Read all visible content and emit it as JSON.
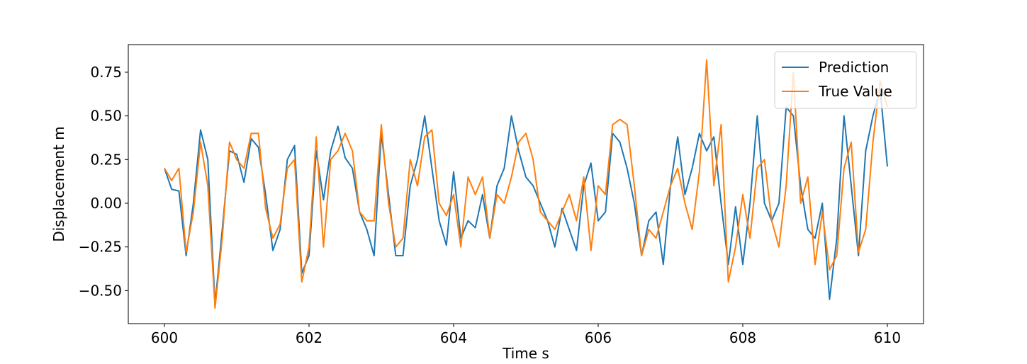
{
  "chart_data": {
    "type": "line",
    "xlabel": "Time s",
    "ylabel": "Displacement m",
    "xlim": [
      599.5,
      610.5
    ],
    "ylim": [
      -0.689,
      0.908
    ],
    "xticks": [
      600,
      602,
      604,
      606,
      608,
      610
    ],
    "yticks": [
      {
        "value": -0.5,
        "label": "−0.50"
      },
      {
        "value": -0.25,
        "label": "−0.25"
      },
      {
        "value": 0,
        "label": "0.00"
      },
      {
        "value": 0.25,
        "label": "0.25"
      },
      {
        "value": 0.5,
        "label": "0.50"
      },
      {
        "value": 0.75,
        "label": "0.75"
      }
    ],
    "grid": false,
    "legend": "upper right",
    "x": [
      600.0,
      600.1,
      600.2,
      600.3,
      600.4,
      600.5,
      600.6,
      600.7,
      600.8,
      600.9,
      601.0,
      601.1,
      601.2,
      601.3,
      601.4,
      601.5,
      601.6,
      601.7,
      601.8,
      601.9,
      602.0,
      602.1,
      602.2,
      602.3,
      602.4,
      602.5,
      602.6,
      602.7,
      602.8,
      602.9,
      603.0,
      603.1,
      603.2,
      603.3,
      603.4,
      603.5,
      603.6,
      603.7,
      603.8,
      603.9,
      604.0,
      604.1,
      604.2,
      604.3,
      604.4,
      604.5,
      604.6,
      604.7,
      604.8,
      604.9,
      605.0,
      605.1,
      605.2,
      605.3,
      605.4,
      605.5,
      605.6,
      605.7,
      605.8,
      605.9,
      606.0,
      606.1,
      606.2,
      606.3,
      606.4,
      606.5,
      606.6,
      606.7,
      606.8,
      606.9,
      607.0,
      607.1,
      607.2,
      607.3,
      607.4,
      607.5,
      607.6,
      607.7,
      607.8,
      607.9,
      608.0,
      608.1,
      608.2,
      608.3,
      608.4,
      608.5,
      608.6,
      608.7,
      608.8,
      608.9,
      609.0,
      609.1,
      609.2,
      609.3,
      609.4,
      609.5,
      609.6,
      609.7,
      609.8,
      609.9,
      610.0
    ],
    "series": [
      {
        "name": "Prediction",
        "color": "#1f77b4",
        "values": [
          0.2,
          0.08,
          0.07,
          -0.3,
          0.0,
          0.42,
          0.25,
          -0.58,
          -0.15,
          0.3,
          0.28,
          0.12,
          0.37,
          0.32,
          0.05,
          -0.27,
          -0.15,
          0.25,
          0.33,
          -0.4,
          -0.3,
          0.3,
          0.02,
          0.3,
          0.44,
          0.26,
          0.2,
          -0.05,
          -0.15,
          -0.3,
          0.4,
          0.05,
          -0.3,
          -0.3,
          0.1,
          0.25,
          0.5,
          0.2,
          -0.1,
          -0.24,
          0.18,
          -0.2,
          -0.1,
          -0.14,
          0.05,
          -0.2,
          0.1,
          0.2,
          0.5,
          0.3,
          0.15,
          0.1,
          0.0,
          -0.1,
          -0.25,
          -0.03,
          -0.15,
          -0.27,
          0.1,
          0.23,
          -0.1,
          -0.05,
          0.4,
          0.35,
          0.2,
          0.0,
          -0.3,
          -0.1,
          -0.05,
          -0.35,
          0.1,
          0.38,
          0.05,
          0.2,
          0.4,
          0.3,
          0.38,
          0.0,
          -0.35,
          -0.02,
          -0.35,
          0.0,
          0.5,
          0.0,
          -0.1,
          0.0,
          0.55,
          0.5,
          0.1,
          -0.15,
          -0.2,
          0.0,
          -0.55,
          -0.2,
          0.5,
          0.1,
          -0.3,
          0.3,
          0.5,
          0.65,
          0.21
        ]
      },
      {
        "name": "True Value",
        "color": "#ff7f0e",
        "values": [
          0.2,
          0.13,
          0.2,
          -0.28,
          -0.05,
          0.35,
          0.1,
          -0.6,
          -0.2,
          0.35,
          0.25,
          0.2,
          0.4,
          0.4,
          -0.03,
          -0.2,
          -0.12,
          0.2,
          0.25,
          -0.45,
          -0.25,
          0.38,
          -0.25,
          0.25,
          0.3,
          0.4,
          0.3,
          -0.05,
          -0.1,
          -0.1,
          0.45,
          0.0,
          -0.25,
          -0.2,
          0.25,
          0.1,
          0.38,
          0.42,
          0.0,
          -0.07,
          0.05,
          -0.25,
          0.15,
          0.05,
          0.15,
          -0.2,
          0.05,
          0.0,
          0.15,
          0.35,
          0.4,
          0.25,
          -0.05,
          -0.1,
          -0.15,
          -0.05,
          0.05,
          -0.1,
          0.15,
          -0.27,
          0.1,
          0.05,
          0.45,
          0.48,
          0.45,
          0.1,
          -0.3,
          -0.15,
          -0.2,
          -0.05,
          0.1,
          0.2,
          0.0,
          -0.15,
          0.18,
          0.82,
          0.1,
          0.45,
          -0.45,
          -0.25,
          0.05,
          -0.2,
          0.2,
          0.25,
          -0.1,
          -0.25,
          0.1,
          0.75,
          0.0,
          0.15,
          -0.35,
          -0.05,
          -0.38,
          -0.3,
          0.2,
          0.35,
          -0.28,
          -0.15,
          0.35,
          0.7,
          0.55
        ]
      }
    ]
  }
}
